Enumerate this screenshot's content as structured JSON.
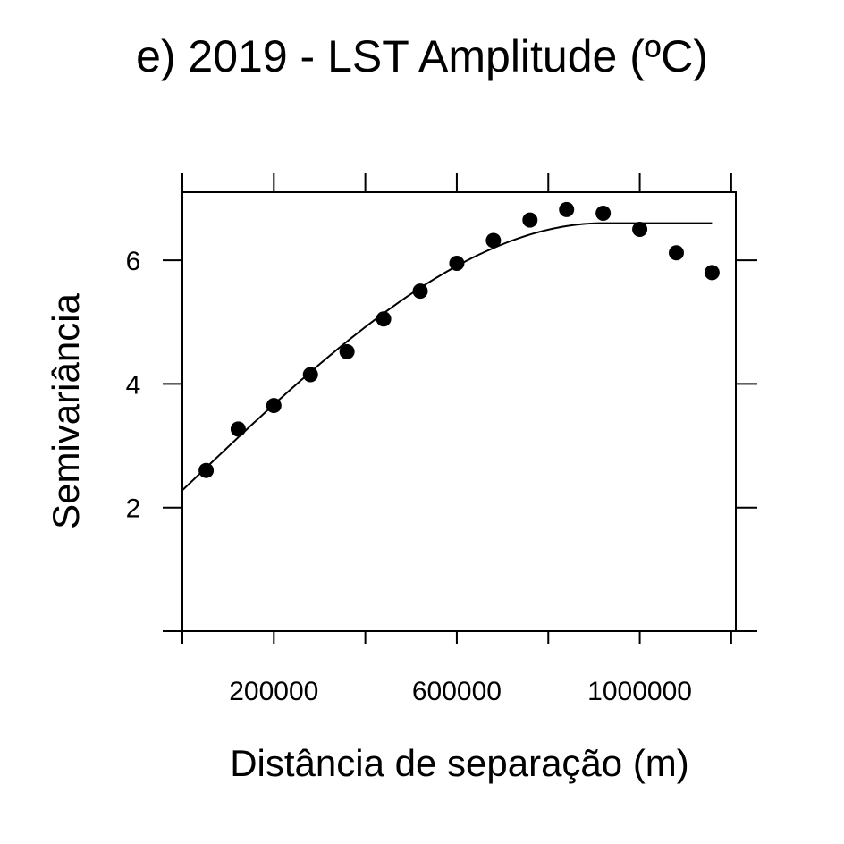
{
  "chart_data": {
    "type": "scatter",
    "title": "e) 2019 - LST Amplitude (ºC)",
    "xlabel": "Distância de separação (m)",
    "ylabel": "Semivariância",
    "xlim": [
      0,
      1210000
    ],
    "ylim": [
      0,
      7.1
    ],
    "x_ticks": [
      0,
      200000,
      400000,
      600000,
      800000,
      1000000,
      1200000
    ],
    "x_tick_labels": [
      "200000",
      "600000",
      "1000000"
    ],
    "x_tick_label_values": [
      200000,
      600000,
      1000000
    ],
    "y_ticks": [
      0,
      2,
      4,
      6
    ],
    "y_tick_labels": [
      "2",
      "4",
      "6"
    ],
    "y_tick_label_values": [
      2,
      4,
      6
    ],
    "grid": false,
    "legend": "none",
    "series": [
      {
        "kind": "points",
        "x": [
          52000,
          122000,
          200000,
          280000,
          360000,
          440000,
          520000,
          600000,
          680000,
          760000,
          840000,
          920000,
          1000000,
          1080000,
          1158000
        ],
        "y": [
          2.6,
          3.27,
          3.65,
          4.15,
          4.52,
          5.05,
          5.5,
          5.95,
          6.32,
          6.65,
          6.82,
          6.76,
          6.5,
          6.12,
          5.8
        ]
      },
      {
        "kind": "line",
        "model": "spherical",
        "nugget": 2.28,
        "sill": 6.6,
        "range": 920000,
        "x_end": 1158000
      }
    ]
  }
}
